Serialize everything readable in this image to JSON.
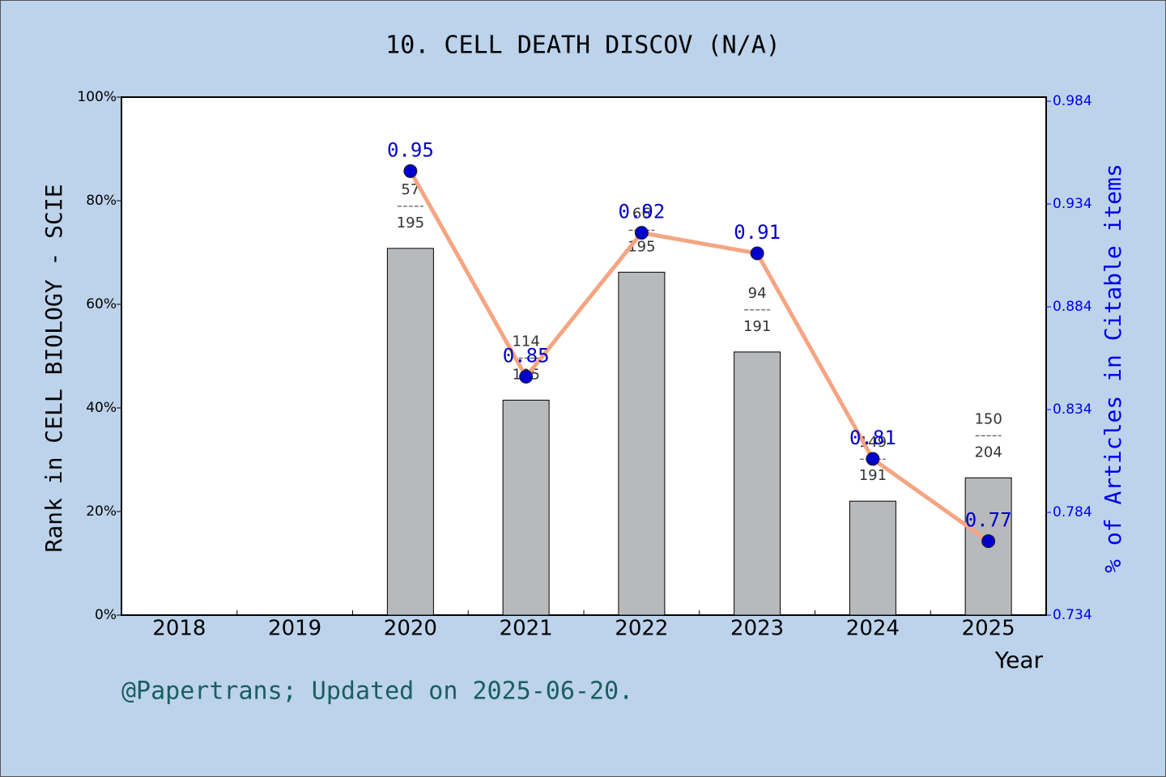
{
  "chart_data": {
    "type": "bar_line",
    "title": "10. CELL DEATH DISCOV (N/A)",
    "y_label": "Rank in CELL BIOLOGY - SCIE",
    "y2_label": "% of Articles in Citable items",
    "x_label": "Year",
    "footer": "@Papertrans; Updated on 2025-06-20.",
    "categories": [
      "2018",
      "2019",
      "2020",
      "2021",
      "2022",
      "2023",
      "2024",
      "2025"
    ],
    "series": [
      {
        "type": "bar",
        "color": "#b8b9bb",
        "values": [
          null,
          null,
          70.8,
          41.5,
          66.2,
          50.8,
          22.0,
          26.5
        ],
        "ranks": [
          null,
          null,
          "57",
          "114",
          "66",
          "94",
          "149",
          "150"
        ],
        "totals": [
          null,
          null,
          "195",
          "195",
          "195",
          "191",
          "191",
          "204"
        ]
      },
      {
        "type": "line",
        "axis": "y2",
        "color": "#f4a582",
        "marker_color": "#0000cc",
        "values": [
          null,
          null,
          0.95,
          0.85,
          0.92,
          0.91,
          0.81,
          0.77
        ]
      }
    ],
    "ylim": [
      0,
      100
    ],
    "yticks": [
      {
        "value": 0,
        "label": "0%"
      },
      {
        "value": 20,
        "label": "20%"
      },
      {
        "value": 40,
        "label": "40%"
      },
      {
        "value": 60,
        "label": "60%"
      },
      {
        "value": 80,
        "label": "80%"
      },
      {
        "value": 100,
        "label": "100%"
      }
    ],
    "y2lim": [
      0.734,
      0.986
    ],
    "y2ticks": [
      0.734,
      0.784,
      0.834,
      0.884,
      0.934,
      0.984
    ]
  }
}
